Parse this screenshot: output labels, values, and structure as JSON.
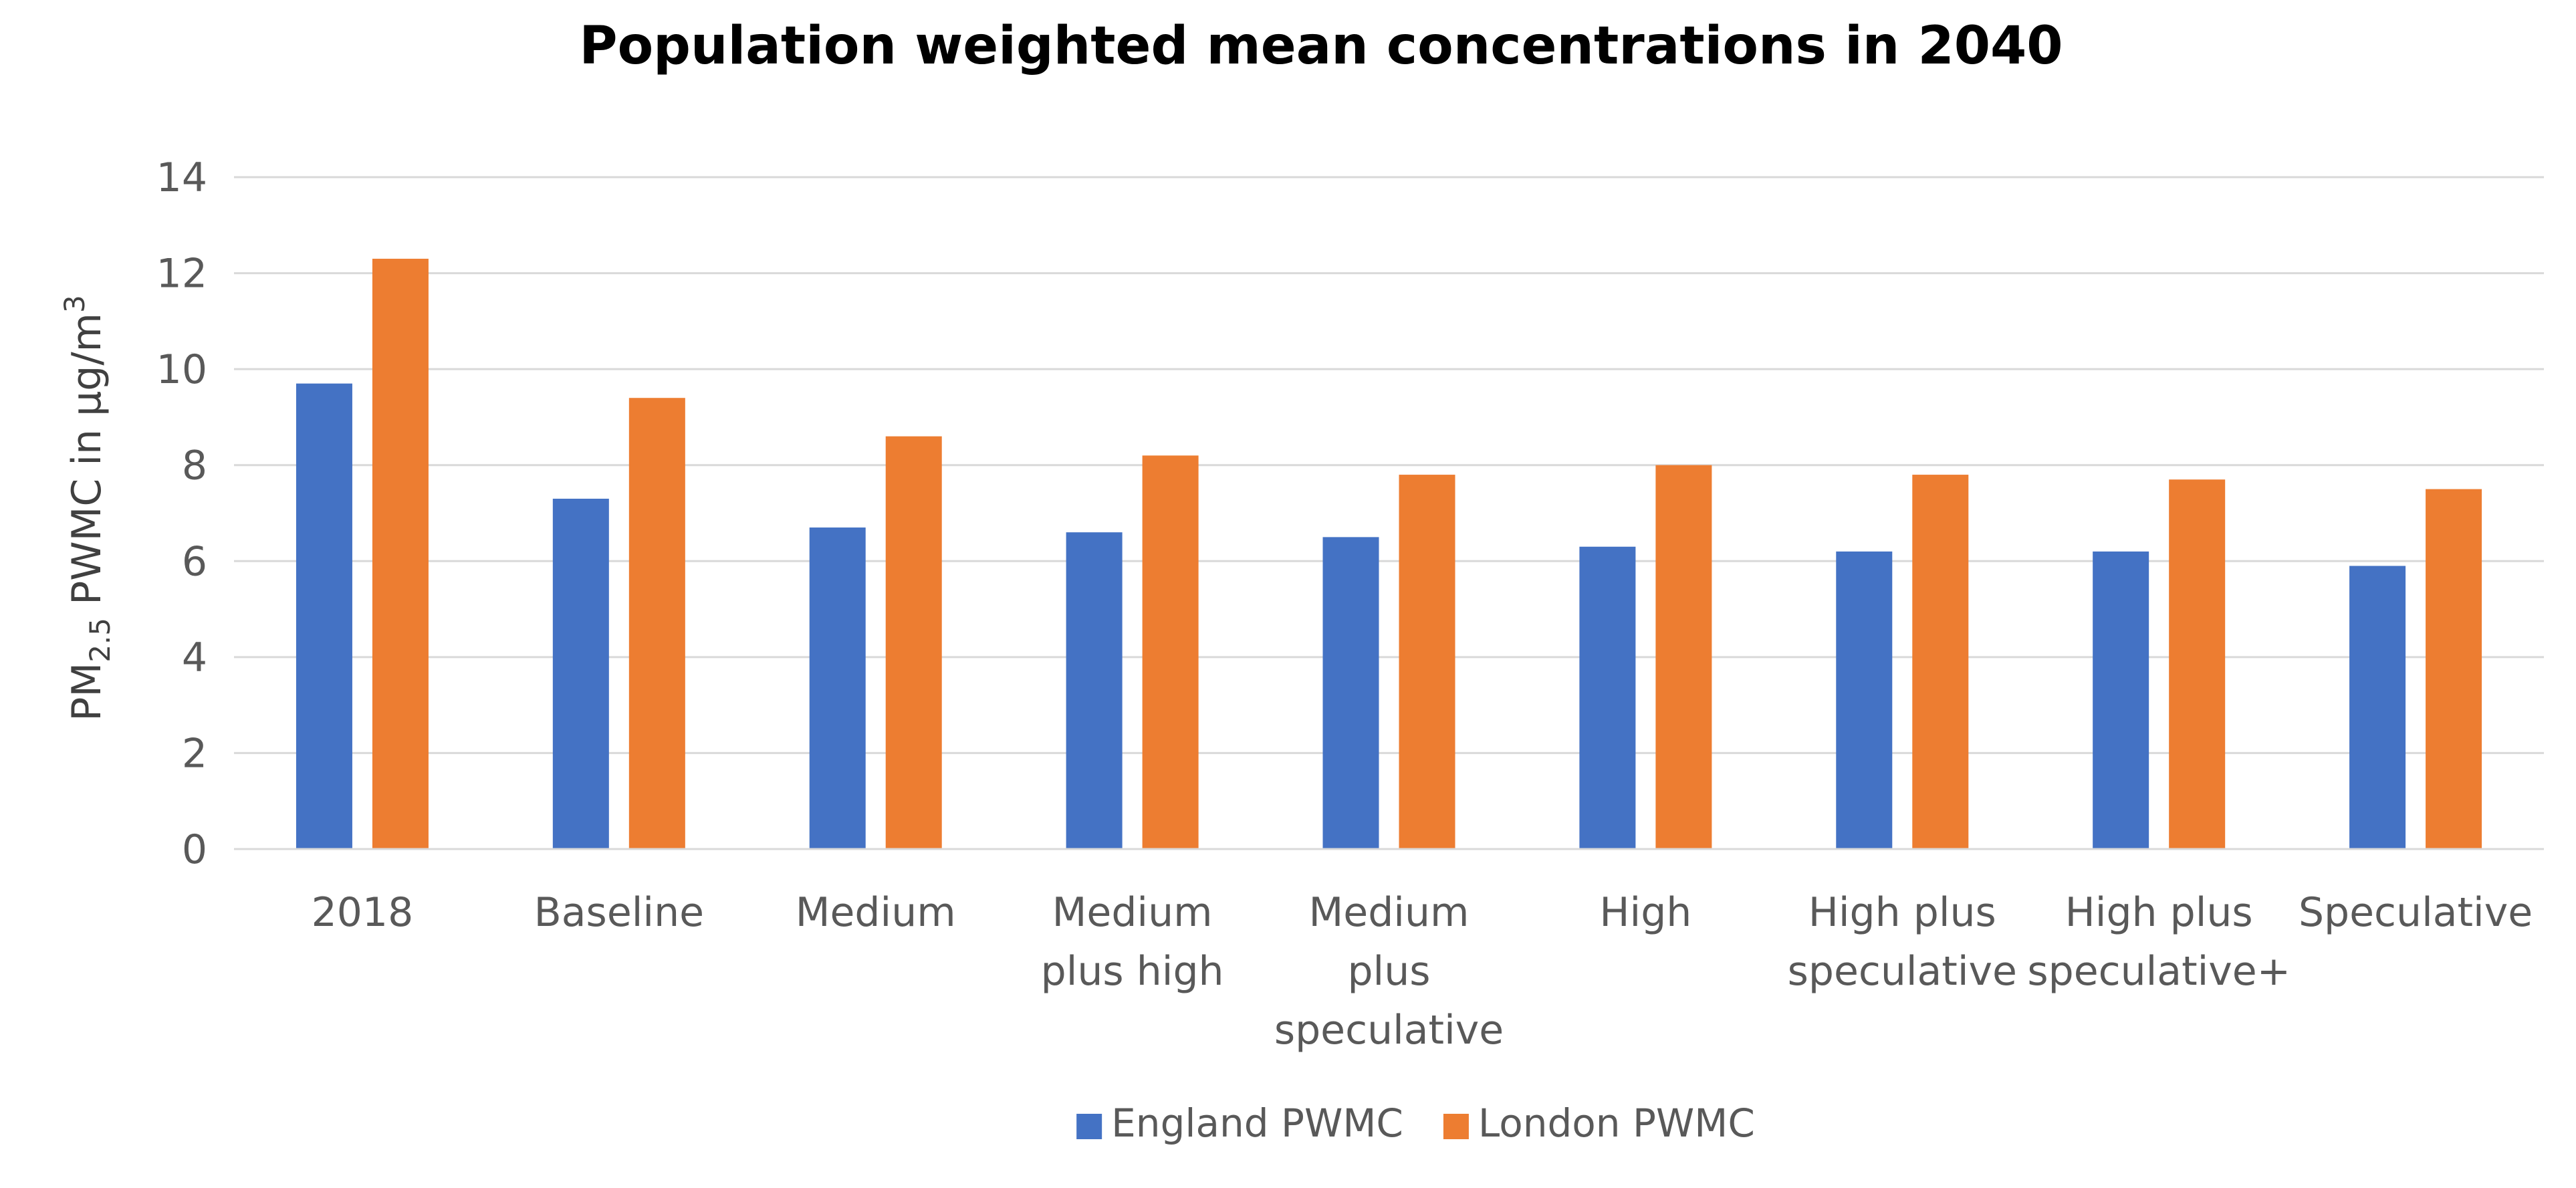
{
  "chart_data": {
    "type": "bar",
    "title": "Population weighted mean concentrations in 2040",
    "xlabel": "",
    "ylabel": {
      "prefix": "PM",
      "subscript": "2.5",
      "middle": " PWMC in µg/m",
      "superscript": "3"
    },
    "ylim": [
      0,
      14
    ],
    "yticks": [
      0,
      2,
      4,
      6,
      8,
      10,
      12,
      14
    ],
    "gridlines": true,
    "legend_position": "bottom-center",
    "categories": [
      [
        "2018"
      ],
      [
        "Baseline"
      ],
      [
        "Medium"
      ],
      [
        "Medium",
        "plus high"
      ],
      [
        "Medium",
        "plus",
        "speculative"
      ],
      [
        "High"
      ],
      [
        "High plus",
        "speculative"
      ],
      [
        "High plus",
        "speculative+"
      ],
      [
        "Speculative"
      ]
    ],
    "series": [
      {
        "name": "England PWMC",
        "color": "#4472C4",
        "values": [
          9.7,
          7.3,
          6.7,
          6.6,
          6.5,
          6.3,
          6.2,
          6.2,
          5.9
        ]
      },
      {
        "name": "London PWMC",
        "color": "#ED7D31",
        "values": [
          12.3,
          9.4,
          8.6,
          8.2,
          7.8,
          8.0,
          7.8,
          7.7,
          7.5
        ]
      }
    ]
  }
}
